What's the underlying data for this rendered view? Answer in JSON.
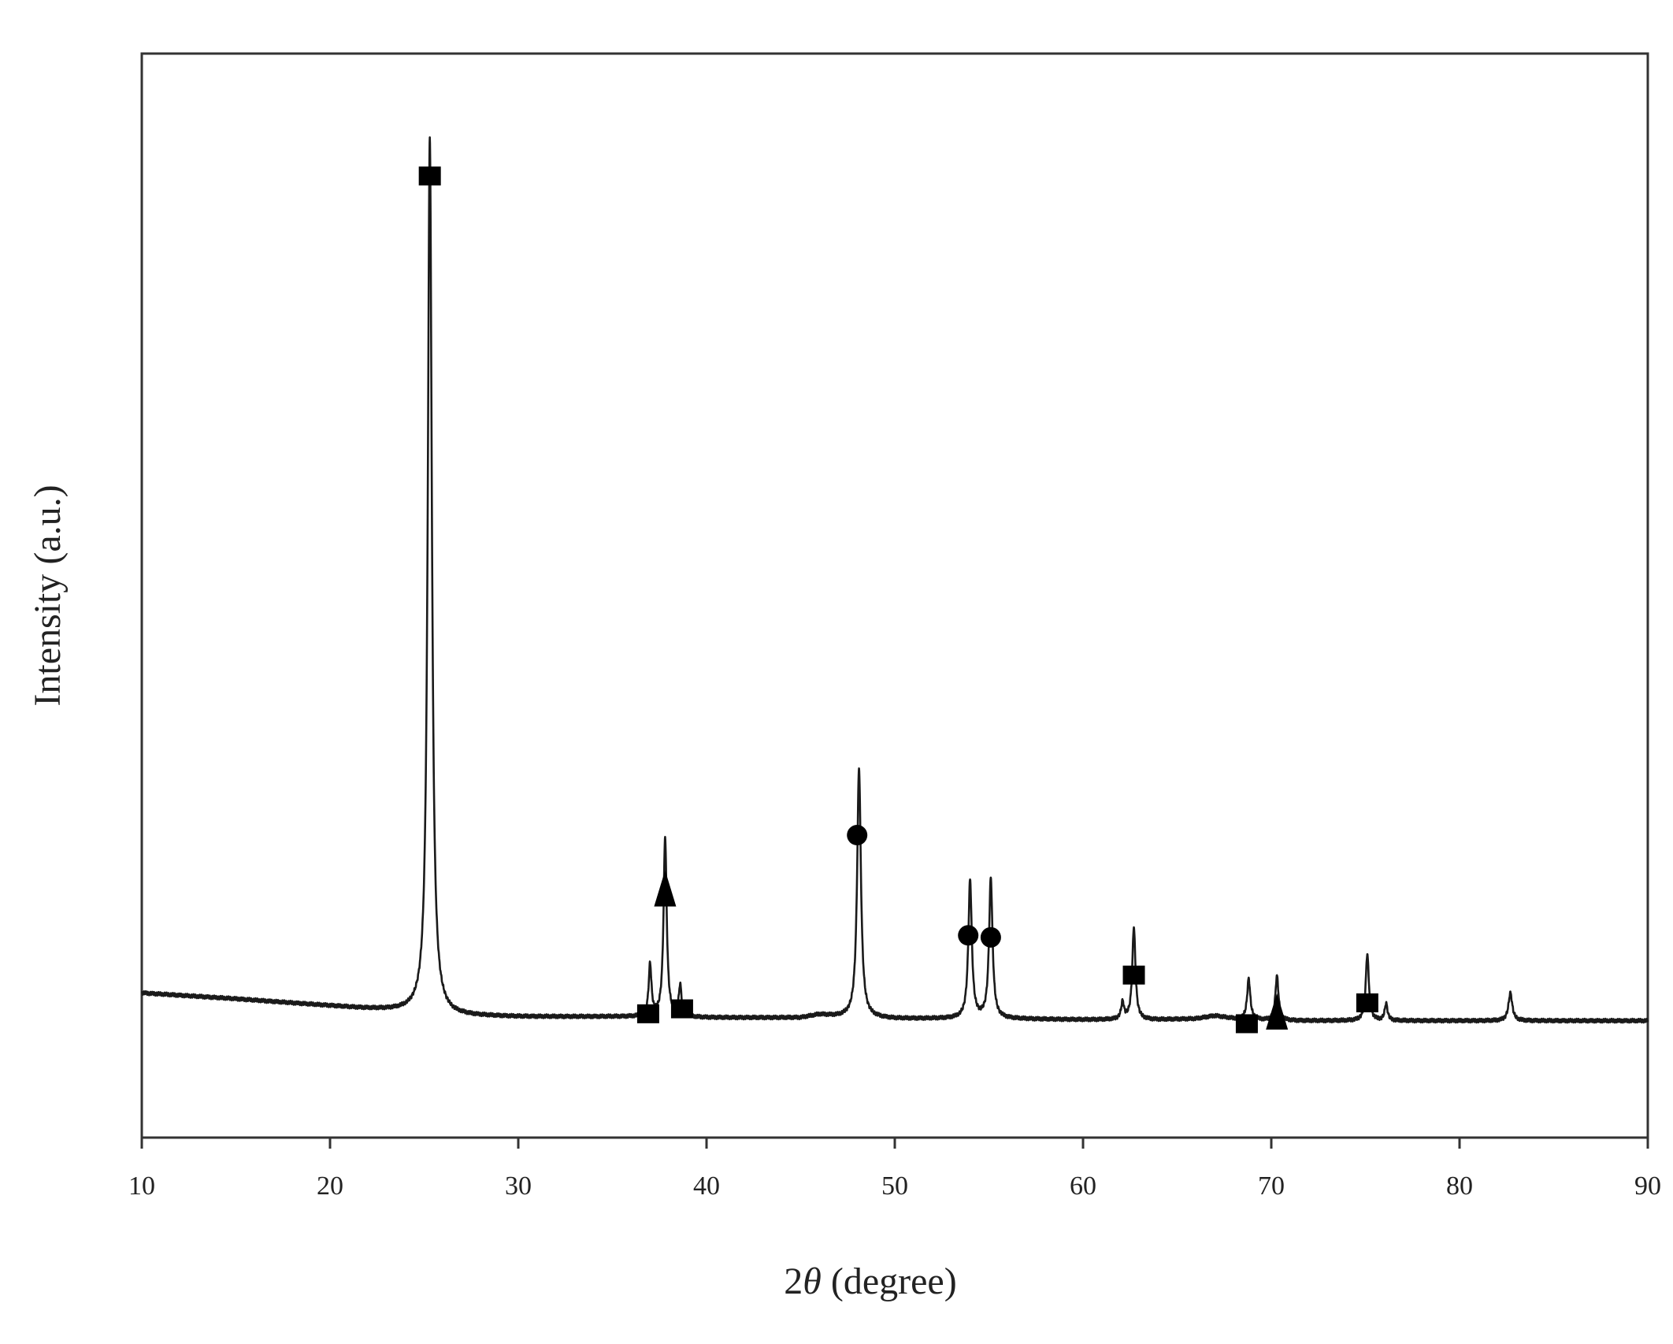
{
  "chart_data": {
    "type": "line",
    "title": "",
    "xlabel_main": "2",
    "xlabel_symbol": "θ",
    "xlabel_unit": " (degree)",
    "ylabel": "Intensity (a.u.)",
    "xlim": [
      10,
      90
    ],
    "ylim": [
      0,
      1000
    ],
    "x_ticks": [
      10,
      20,
      30,
      40,
      50,
      60,
      70,
      80,
      90
    ],
    "x_tick_labels": [
      "10",
      "20",
      "30",
      "40",
      "50",
      "60",
      "70",
      "80",
      "90"
    ],
    "grid": false,
    "line_color": "#1a1a1a",
    "baseline": {
      "x": [
        10,
        15,
        20,
        22,
        24.5,
        26.5,
        30,
        35,
        40,
        45,
        46,
        47,
        50,
        55,
        60,
        62,
        64,
        66,
        67,
        68,
        70,
        72,
        74,
        76,
        78,
        80,
        82,
        84,
        86,
        90
      ],
      "y": [
        87,
        81,
        74,
        71,
        68,
        64,
        63,
        63,
        62,
        62,
        65,
        63,
        61,
        61,
        60,
        60,
        60,
        61,
        64,
        61,
        59,
        59,
        59,
        59,
        59,
        59,
        59,
        59,
        59,
        59
      ]
    },
    "peaks": [
      {
        "x": 25.3,
        "y": 883,
        "w": 0.13
      },
      {
        "x": 37.0,
        "y": 52,
        "w": 0.09
      },
      {
        "x": 37.8,
        "y": 181,
        "w": 0.1
      },
      {
        "x": 38.6,
        "y": 31,
        "w": 0.09
      },
      {
        "x": 48.1,
        "y": 251,
        "w": 0.12
      },
      {
        "x": 54.0,
        "y": 139,
        "w": 0.11
      },
      {
        "x": 55.1,
        "y": 141,
        "w": 0.11
      },
      {
        "x": 62.1,
        "y": 17,
        "w": 0.09
      },
      {
        "x": 62.7,
        "y": 93,
        "w": 0.1
      },
      {
        "x": 68.8,
        "y": 41,
        "w": 0.1
      },
      {
        "x": 70.3,
        "y": 45,
        "w": 0.1
      },
      {
        "x": 75.1,
        "y": 67,
        "w": 0.1
      },
      {
        "x": 76.1,
        "y": 17,
        "w": 0.09
      },
      {
        "x": 82.7,
        "y": 28,
        "w": 0.12
      }
    ],
    "markers": [
      {
        "x": 25.3,
        "y": 910,
        "shape": "square"
      },
      {
        "x": 36.9,
        "y": 66,
        "shape": "square"
      },
      {
        "x": 37.8,
        "y": 190,
        "shape": "triangle"
      },
      {
        "x": 38.7,
        "y": 71,
        "shape": "square"
      },
      {
        "x": 48.0,
        "y": 246,
        "shape": "circle"
      },
      {
        "x": 53.9,
        "y": 145,
        "shape": "circle"
      },
      {
        "x": 55.1,
        "y": 143,
        "shape": "circle"
      },
      {
        "x": 62.7,
        "y": 105,
        "shape": "square"
      },
      {
        "x": 68.7,
        "y": 56,
        "shape": "square"
      },
      {
        "x": 70.3,
        "y": 66,
        "shape": "triangle"
      },
      {
        "x": 75.1,
        "y": 77,
        "shape": "square"
      }
    ]
  }
}
